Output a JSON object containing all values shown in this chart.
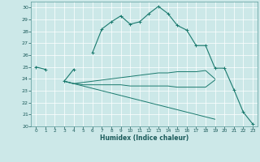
{
  "xlabel": "Humidex (Indice chaleur)",
  "x": [
    0,
    1,
    2,
    3,
    4,
    5,
    6,
    7,
    8,
    9,
    10,
    11,
    12,
    13,
    14,
    15,
    16,
    17,
    18,
    19,
    20,
    21,
    22,
    23
  ],
  "line1": [
    25.0,
    24.8,
    null,
    23.8,
    24.8,
    null,
    26.2,
    28.2,
    28.8,
    29.3,
    28.6,
    28.8,
    29.5,
    30.1,
    29.5,
    28.5,
    28.1,
    26.8,
    26.8,
    24.9,
    24.9,
    23.1,
    21.2,
    20.2
  ],
  "line2": [
    null,
    null,
    null,
    23.8,
    23.6,
    23.7,
    23.8,
    23.9,
    24.0,
    24.1,
    24.2,
    24.3,
    24.4,
    24.5,
    24.5,
    24.6,
    24.6,
    24.6,
    24.7,
    24.0,
    null,
    null,
    null,
    null
  ],
  "line3": [
    null,
    null,
    null,
    23.8,
    23.6,
    23.5,
    23.5,
    23.5,
    23.5,
    23.5,
    23.4,
    23.4,
    23.4,
    23.4,
    23.4,
    23.3,
    23.3,
    23.3,
    23.3,
    23.9,
    null,
    null,
    null,
    null
  ],
  "line4": [
    null,
    null,
    null,
    23.8,
    23.6,
    23.4,
    23.2,
    23.0,
    22.8,
    22.6,
    22.4,
    22.2,
    22.0,
    21.8,
    21.6,
    21.4,
    21.2,
    21.0,
    20.8,
    20.6,
    null,
    null,
    null,
    null
  ],
  "line_color": "#1a7a6e",
  "bg_color": "#cce8e8",
  "grid_color": "#b0d8d8",
  "ylim": [
    20,
    30.5
  ],
  "yticks": [
    20,
    21,
    22,
    23,
    24,
    25,
    26,
    27,
    28,
    29,
    30
  ],
  "xlim": [
    -0.5,
    23.5
  ],
  "xticks": [
    0,
    1,
    2,
    3,
    4,
    5,
    6,
    7,
    8,
    9,
    10,
    11,
    12,
    13,
    14,
    15,
    16,
    17,
    18,
    19,
    20,
    21,
    22,
    23
  ]
}
